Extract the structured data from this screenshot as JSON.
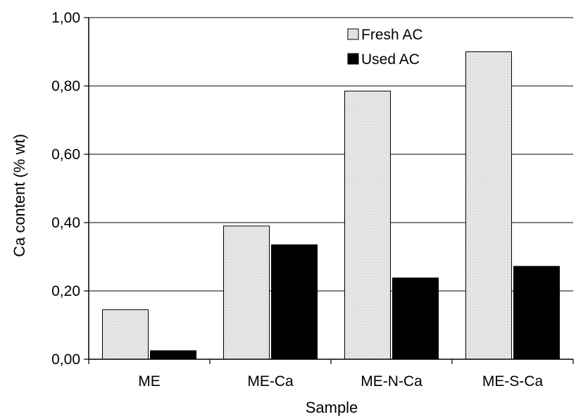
{
  "chart_data": {
    "type": "bar",
    "title": "",
    "xlabel": "Sample",
    "ylabel": "Ca content (% wt)",
    "categories": [
      "ME",
      "ME-Ca",
      "ME-N-Ca",
      "ME-S-Ca"
    ],
    "series": [
      {
        "name": "Fresh AC",
        "values": [
          0.145,
          0.39,
          0.785,
          0.9
        ],
        "color": "#e4e4e4",
        "pattern": "stipple"
      },
      {
        "name": "Used AC",
        "values": [
          0.025,
          0.335,
          0.238,
          0.272
        ],
        "color": "#000000"
      }
    ],
    "ylim": [
      0,
      1.0
    ],
    "yticks": [
      "0,00",
      "0,20",
      "0,40",
      "0,60",
      "0,80",
      "1,00"
    ],
    "grid": true,
    "legend": "top-right"
  }
}
